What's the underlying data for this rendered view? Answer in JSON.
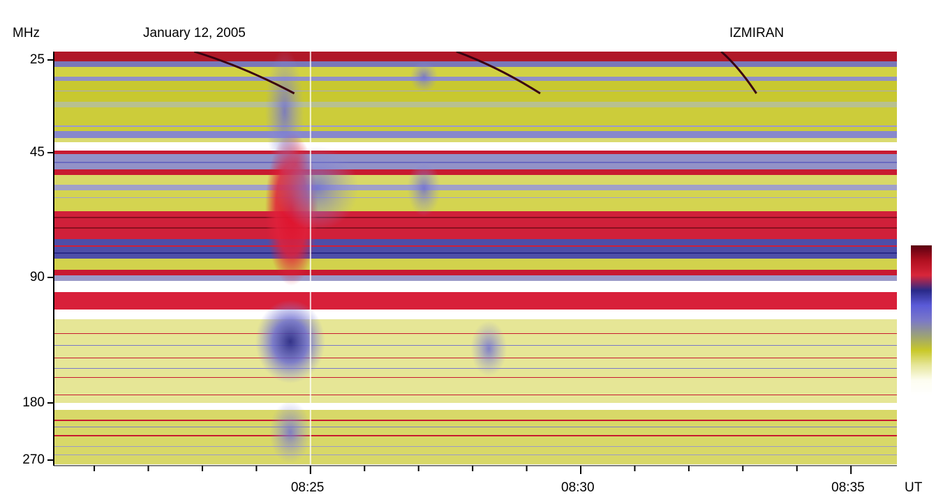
{
  "chart_data": {
    "type": "heatmap",
    "title": "January 12, 2005",
    "observatory": "IZMIRAN",
    "ylabel": "MHz",
    "xlabel": "UT",
    "y_ticks": [
      {
        "label": "25",
        "value": 25
      },
      {
        "label": "45",
        "value": 45
      },
      {
        "label": "90",
        "value": 90
      },
      {
        "label": "180",
        "value": 180
      },
      {
        "label": "270",
        "value": 270
      }
    ],
    "x_ticks": [
      {
        "label": "08:25",
        "minute": 25.0
      },
      {
        "label": "08:30",
        "minute": 30.0
      },
      {
        "label": "08:35",
        "minute": 35.0
      }
    ],
    "x_minor_step_minutes": 1,
    "xlim_minutes": [
      20.25,
      35.85
    ],
    "colorbar": [
      "#ffffff",
      "#fdfdf0",
      "#e6e69a",
      "#c8c828",
      "#9aa07a",
      "#7a78c8",
      "#5a5ad8",
      "#2a2a88",
      "#d8263a",
      "#b01020",
      "#5a0010"
    ],
    "bursts": [
      {
        "type": "III",
        "start_minute": 24.15,
        "end_minute": 25.05,
        "intensity": "strong"
      },
      {
        "type": "III",
        "start_minute": 26.9,
        "end_minute": 27.4,
        "intensity": "moderate"
      },
      {
        "type": "III",
        "start_minute": 28.0,
        "end_minute": 28.6,
        "intensity": "weak"
      }
    ],
    "frequency_bands": [
      {
        "from_mhz": 25,
        "to_mhz": 45,
        "level": "moderate"
      },
      {
        "from_mhz": 45,
        "to_mhz": 90,
        "level": "strong-interference"
      },
      {
        "from_mhz": 90,
        "to_mhz": 180,
        "level": "moderate"
      },
      {
        "from_mhz": 180,
        "to_mhz": 270,
        "level": "moderate"
      }
    ]
  }
}
